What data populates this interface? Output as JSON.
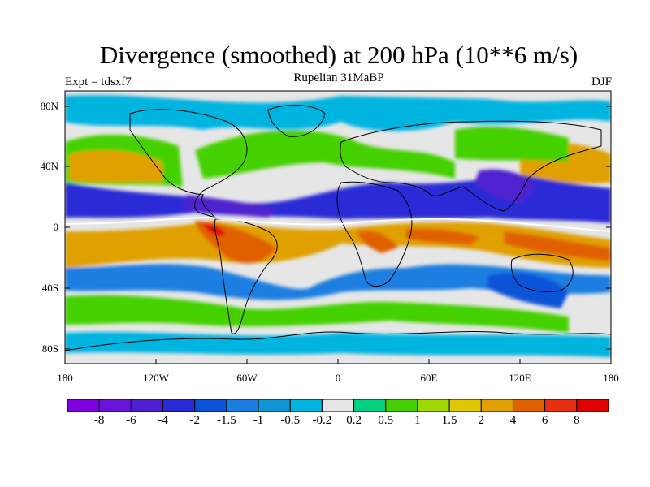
{
  "header": {
    "title": "Divergence (smoothed) at 200 hPa (10**6 m/s)",
    "subtitle": "Rupelian  31MaBP",
    "left_label": "Expt = tdsxf7",
    "right_label": "DJF"
  },
  "axes": {
    "lat_labels": [
      "80N",
      "40N",
      "0",
      "40S",
      "80S"
    ],
    "lon_labels": [
      "180",
      "120W",
      "60W",
      "0",
      "60E",
      "120E",
      "180"
    ]
  },
  "colorbar": {
    "labels": [
      "-8",
      "-6",
      "-4",
      "-2",
      "-1.5",
      "-1",
      "-0.5",
      "-0.2",
      "0.2",
      "0.5",
      "1",
      "1.5",
      "2",
      "4",
      "6",
      "8"
    ],
    "colors": [
      "#7f00e0",
      "#6a14d8",
      "#5020d0",
      "#2a2ad6",
      "#0a52d8",
      "#1a7ee0",
      "#0e96d6",
      "#00b4e0",
      "#e6e6e6",
      "#00d080",
      "#44d000",
      "#a0d800",
      "#e0c800",
      "#e0a000",
      "#e06000",
      "#e83010",
      "#e00000"
    ]
  }
}
